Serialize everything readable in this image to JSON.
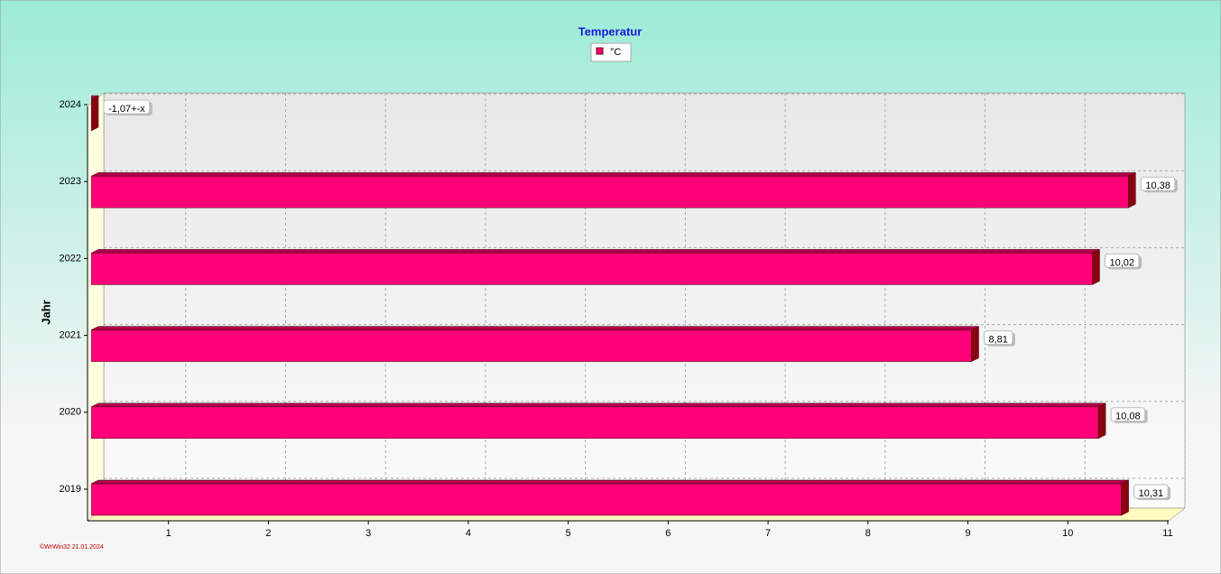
{
  "chart_data": {
    "type": "bar",
    "orientation": "horizontal",
    "title": "Temperatur",
    "y_label": "Jahr",
    "footer": "©WrWin32  21.01.2024",
    "categories": [
      "2019",
      "2020",
      "2021",
      "2022",
      "2023",
      "2024"
    ],
    "series": [
      {
        "name": "°C",
        "color": "#ff0078",
        "values": [
          10.31,
          10.08,
          8.81,
          10.02,
          10.38,
          -1.07
        ],
        "value_labels": [
          "10,31",
          "10,08",
          "8,81",
          "10,02",
          "10,38",
          "-1,07+-x"
        ]
      }
    ],
    "xlim": [
      0,
      11
    ],
    "xticks": [
      1,
      2,
      3,
      4,
      5,
      6,
      7,
      8,
      9,
      10,
      11
    ],
    "grid": true
  }
}
